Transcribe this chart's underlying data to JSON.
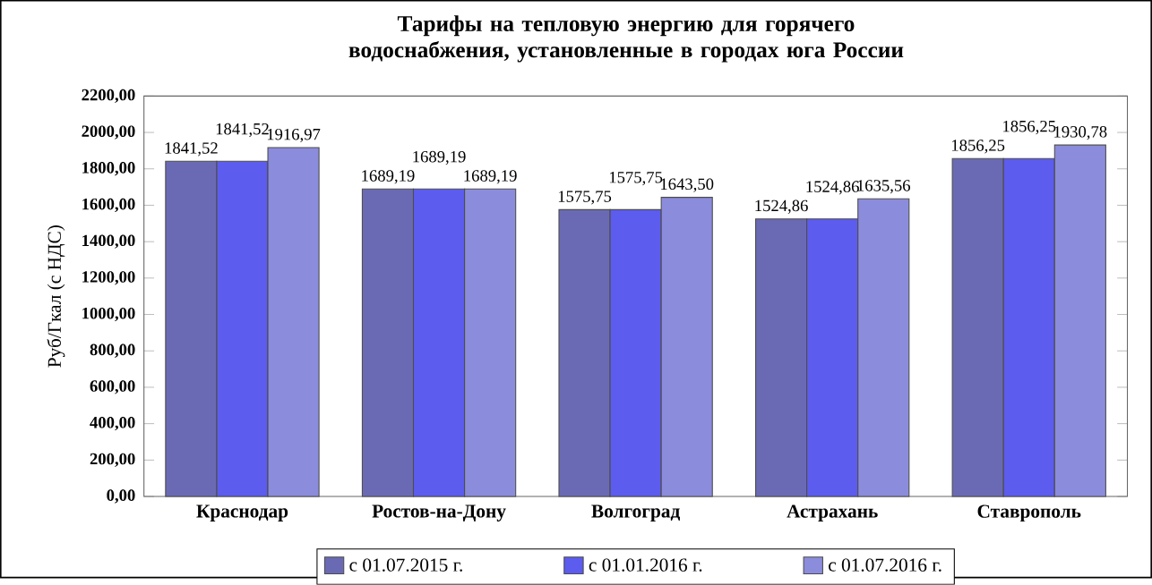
{
  "chart_data": {
    "type": "bar",
    "title": "Тарифы на тепловую энергию для горячего водоснабжения, установленные  в городах юга России",
    "ylabel": "Руб/Гкал (с НДС)",
    "categories": [
      "Краснодар",
      "Ростов-на-Дону",
      "Волгоград",
      "Астрахань",
      "Ставрополь"
    ],
    "series": [
      {
        "name": "с 01.07.2015 г.",
        "color": "#6a6ab4",
        "values": [
          1841.52,
          1689.19,
          1575.75,
          1524.86,
          1856.25
        ],
        "value_labels": [
          "1841,52",
          "1689,19",
          "1575,75",
          "1524,86",
          "1856,25"
        ]
      },
      {
        "name": "с 01.01.2016 г.",
        "color": "#5c5cee",
        "values": [
          1841.52,
          1689.19,
          1575.75,
          1524.86,
          1856.25
        ],
        "value_labels": [
          "1841,52",
          "1689,19",
          "1575,75",
          "1524,86",
          "1856,25"
        ]
      },
      {
        "name": "с 01.07.2016 г.",
        "color": "#8c8cdc",
        "values": [
          1916.97,
          1689.19,
          1643.5,
          1635.56,
          1930.78
        ],
        "value_labels": [
          "1916,97",
          "1689,19",
          "1643,50",
          "1635,56",
          "1930,78"
        ]
      }
    ],
    "ylim": [
      0,
      2200
    ],
    "yticks": [
      {
        "value": 0,
        "label": "0,00"
      },
      {
        "value": 200,
        "label": "200,00"
      },
      {
        "value": 400,
        "label": "400,00"
      },
      {
        "value": 600,
        "label": "600,00"
      },
      {
        "value": 800,
        "label": "800,00"
      },
      {
        "value": 1000,
        "label": "1000,00"
      },
      {
        "value": 1200,
        "label": "1200,00"
      },
      {
        "value": 1400,
        "label": "1400,00"
      },
      {
        "value": 1600,
        "label": "1600,00"
      },
      {
        "value": 1800,
        "label": "1800,00"
      },
      {
        "value": 2000,
        "label": "2000,00"
      },
      {
        "value": 2200,
        "label": "2200,00"
      }
    ],
    "legend": "bottom"
  }
}
